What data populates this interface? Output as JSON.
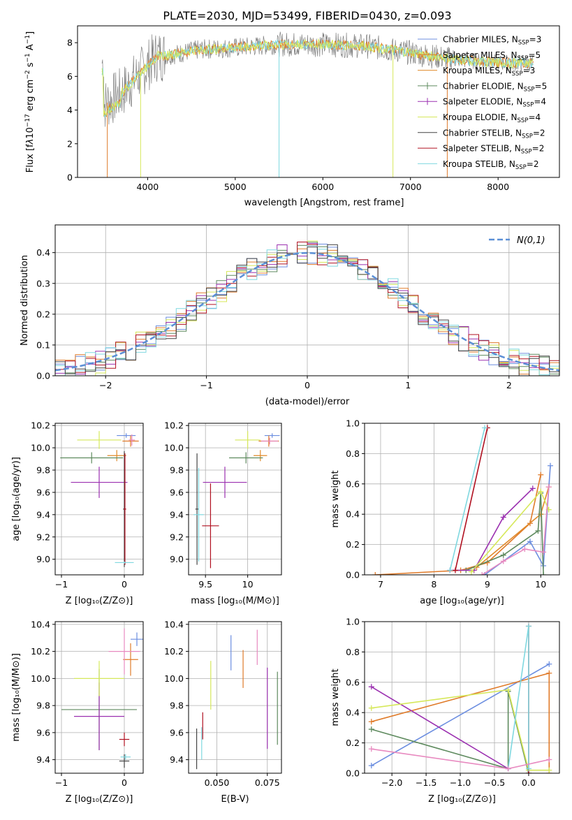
{
  "figure_title": "PLATE=2030, MJD=53499, FIBERID=0430, z=0.093",
  "colors": {
    "Chabrier MILES": "#6c8ee0",
    "Salpeter MILES": "#e07b2a",
    "Kroupa MILES": "#e08a2a",
    "Chabrier ELODIE": "#5e8a5e",
    "Salpeter ELODIE": "#9b30b0",
    "Kroupa ELODIE": "#d6e85a",
    "Chabrier STELIB": "#444444",
    "Salpeter STELIB": "#b01020",
    "Kroupa STELIB": "#7fd8e0",
    "pink": "#e88ac0",
    "grid": "#b0b0b0",
    "normal_line": "#5b8fd6"
  },
  "chart_data": [
    {
      "type": "line",
      "title": "PLATE=2030, MJD=53499, FIBERID=0430, z=0.093",
      "xlabel": "wavelength [Angstrom, rest frame]",
      "ylabel": "Flux [f",
      "xlim": [
        3200,
        8700
      ],
      "ylim": [
        0,
        9
      ],
      "xticks": [
        4000,
        5000,
        6000,
        7000,
        8000
      ],
      "yticks": [
        0,
        2,
        4,
        6,
        8
      ],
      "legend": [
        {
          "name": "Chabrier MILES",
          "nssp": "3"
        },
        {
          "name": "Salpeter MILES",
          "nssp": "5"
        },
        {
          "name": "Kroupa MILES",
          "nssp": "3"
        },
        {
          "name": "Chabrier ELODIE",
          "nssp": "5"
        },
        {
          "name": "Salpeter ELODIE",
          "nssp": "4"
        },
        {
          "name": "Kroupa ELODIE",
          "nssp": "4"
        },
        {
          "name": "Chabrier STELIB",
          "nssp": "2"
        },
        {
          "name": "Salpeter STELIB",
          "nssp": "2"
        },
        {
          "name": "Kroupa STELIB",
          "nssp": "2"
        }
      ],
      "legend_placement": "right",
      "spectrum_continuum": {
        "x": [
          3500,
          3700,
          3900,
          4100,
          4300,
          4600,
          5000,
          5500,
          6000,
          6500,
          7000,
          7500,
          8000,
          8400
        ],
        "y": [
          4.3,
          5.0,
          6.1,
          7.2,
          7.3,
          7.6,
          7.7,
          7.9,
          7.9,
          7.8,
          7.4,
          7.0,
          6.8,
          6.8
        ]
      }
    },
    {
      "type": "line",
      "xlabel": "(data-model)/error",
      "ylabel": "Normed distribution",
      "xlim": [
        -2.5,
        2.5
      ],
      "ylim": [
        0,
        0.49
      ],
      "xticks": [
        -2,
        -1,
        0,
        1,
        2
      ],
      "yticks": [
        0.0,
        0.1,
        0.2,
        0.3,
        0.4
      ],
      "grid": true,
      "legend_label": "N(0,1)",
      "legend_placement": "top-right"
    },
    {
      "type": "scatter",
      "xlabel": "Z [log10(Z/Zsun)]",
      "ylabel": "age [log10(age/yr)]",
      "xlim": [
        -1.1,
        0.3
      ],
      "ylim": [
        8.86,
        10.22
      ],
      "xticks": [
        -1,
        0
      ],
      "yticks": [
        9.0,
        9.2,
        9.4,
        9.6,
        9.8,
        10.0,
        10.2
      ],
      "grid": true,
      "points": [
        {
          "series": "Chabrier MILES",
          "x": 0.03,
          "y": 10.11,
          "xerr": 0.15,
          "yerr": 0.02
        },
        {
          "series": "Salpeter MILES",
          "x": 0.1,
          "y": 10.06,
          "xerr": 0.13,
          "yerr": 0.05
        },
        {
          "series": "Kroupa MILES",
          "x": -0.12,
          "y": 9.93,
          "xerr": 0.15,
          "yerr": 0.05
        },
        {
          "series": "Chabrier ELODIE",
          "x": -0.52,
          "y": 9.91,
          "xerr": 0.5,
          "yerr": 0.05
        },
        {
          "series": "Salpeter ELODIE",
          "x": -0.4,
          "y": 9.69,
          "xerr": 0.45,
          "yerr": 0.14
        },
        {
          "series": "Kroupa ELODIE",
          "x": -0.4,
          "y": 10.07,
          "xerr": 0.35,
          "yerr": 0.08
        },
        {
          "series": "Chabrier STELIB",
          "x": 0.0,
          "y": 9.45,
          "xerr": 0.02,
          "yerr": 0.52
        },
        {
          "series": "Salpeter STELIB",
          "x": 0.01,
          "y": 9.45,
          "xerr": 0.02,
          "yerr": 0.5
        },
        {
          "series": "Kroupa STELIB",
          "x": 0.0,
          "y": 8.97,
          "xerr": 0.15,
          "yerr": 0.01
        },
        {
          "series": "pink",
          "x": 0.12,
          "y": 10.07,
          "xerr": 0.05,
          "yerr": 0.05
        }
      ]
    },
    {
      "type": "scatter",
      "xlabel": "mass [log10(M/Msun)]",
      "xlim": [
        9.3,
        10.4
      ],
      "ylim": [
        8.86,
        10.22
      ],
      "xticks": [
        9.5,
        10.0
      ],
      "yticks": [
        9.0,
        9.2,
        9.4,
        9.6,
        9.8,
        10.0,
        10.2
      ],
      "grid": true,
      "points": [
        {
          "series": "Chabrier MILES",
          "x": 10.29,
          "y": 10.11,
          "xerr": 0.09,
          "yerr": 0.02
        },
        {
          "series": "Salpeter MILES",
          "x": 10.25,
          "y": 10.06,
          "xerr": 0.12,
          "yerr": 0.05
        },
        {
          "series": "Kroupa MILES",
          "x": 10.15,
          "y": 9.93,
          "xerr": 0.08,
          "yerr": 0.05
        },
        {
          "series": "Chabrier ELODIE",
          "x": 9.98,
          "y": 9.91,
          "xerr": 0.2,
          "yerr": 0.05
        },
        {
          "series": "Salpeter ELODIE",
          "x": 9.73,
          "y": 9.69,
          "xerr": 0.26,
          "yerr": 0.14
        },
        {
          "series": "Kroupa ELODIE",
          "x": 10.0,
          "y": 10.07,
          "xerr": 0.15,
          "yerr": 0.08
        },
        {
          "series": "Chabrier STELIB",
          "x": 9.4,
          "y": 9.45,
          "xerr": 0.02,
          "yerr": 0.5
        },
        {
          "series": "Salpeter STELIB",
          "x": 9.56,
          "y": 9.3,
          "xerr": 0.1,
          "yerr": 0.38
        },
        {
          "series": "Kroupa STELIB",
          "x": 9.42,
          "y": 9.4,
          "xerr": 0.06,
          "yerr": 0.42
        },
        {
          "series": "pink",
          "x": 10.26,
          "y": 10.06,
          "xerr": 0.1,
          "yerr": 0.03
        }
      ]
    },
    {
      "type": "line",
      "xlabel": "age [log10(age/yr)]",
      "ylabel": "mass weight",
      "xlim": [
        6.7,
        10.35
      ],
      "ylim": [
        0,
        1.0
      ],
      "xticks": [
        7,
        8,
        9,
        10
      ],
      "yticks": [
        0.0,
        0.2,
        0.4,
        0.6,
        0.8,
        1.0
      ],
      "grid": true,
      "series": [
        {
          "name": "Chabrier MILES",
          "x": [
            8.95,
            9.8,
            10.05,
            10.18
          ],
          "y": [
            0.0,
            0.22,
            0.06,
            0.72
          ]
        },
        {
          "name": "Salpeter MILES",
          "x": [
            6.9,
            8.5,
            9.0,
            9.8,
            10.0
          ],
          "y": [
            0.0,
            0.03,
            0.08,
            0.34,
            0.66
          ]
        },
        {
          "name": "Kroupa MILES",
          "x": [
            8.8,
            10.0,
            10.15
          ],
          "y": [
            0.05,
            0.4,
            0.58
          ]
        },
        {
          "name": "Chabrier ELODIE",
          "x": [
            8.6,
            9.3,
            9.95,
            10.0,
            10.05
          ],
          "y": [
            0.03,
            0.13,
            0.29,
            0.54,
            0.0
          ]
        },
        {
          "name": "Salpeter ELODIE",
          "x": [
            8.3,
            8.75,
            9.3,
            9.85
          ],
          "y": [
            0.03,
            0.03,
            0.38,
            0.57
          ]
        },
        {
          "name": "Kroupa ELODIE",
          "x": [
            8.7,
            10.0,
            10.15
          ],
          "y": [
            0.02,
            0.55,
            0.43
          ]
        },
        {
          "name": "Salpeter STELIB",
          "x": [
            8.4,
            9.0
          ],
          "y": [
            0.03,
            0.97
          ]
        },
        {
          "name": "Kroupa STELIB",
          "x": [
            8.3,
            8.95
          ],
          "y": [
            0.03,
            0.97
          ]
        },
        {
          "name": "pink",
          "x": [
            8.9,
            9.3,
            9.7,
            10.05,
            10.15
          ],
          "y": [
            0.0,
            0.09,
            0.17,
            0.15,
            0.58
          ]
        }
      ]
    },
    {
      "type": "scatter",
      "xlabel": "Z [log10(Z/Zsun)]",
      "ylabel": "mass [log10(M/Msun)]",
      "xlim": [
        -1.1,
        0.3
      ],
      "ylim": [
        9.3,
        10.42
      ],
      "xticks": [
        -1,
        0
      ],
      "yticks": [
        9.4,
        9.6,
        9.8,
        10.0,
        10.2,
        10.4
      ],
      "grid": true,
      "points": [
        {
          "series": "Chabrier MILES",
          "x": 0.2,
          "y": 10.29,
          "xerr": 0.1,
          "yerr": 0.05
        },
        {
          "series": "Salpeter MILES",
          "x": 0.1,
          "y": 10.14,
          "xerr": 0.12,
          "yerr": 0.12
        },
        {
          "series": "Chabrier ELODIE",
          "x": -0.4,
          "y": 9.77,
          "xerr": 0.6,
          "yerr": 0.3
        },
        {
          "series": "Salpeter ELODIE",
          "x": -0.4,
          "y": 9.72,
          "xerr": 0.4,
          "yerr": 0.25
        },
        {
          "series": "Kroupa ELODIE",
          "x": -0.4,
          "y": 10.0,
          "xerr": 0.4,
          "yerr": 0.13
        },
        {
          "series": "Chabrier STELIB",
          "x": 0.0,
          "y": 9.39,
          "xerr": 0.08,
          "yerr": 0.05
        },
        {
          "series": "Salpeter STELIB",
          "x": 0.0,
          "y": 9.55,
          "xerr": 0.08,
          "yerr": 0.05
        },
        {
          "series": "Kroupa STELIB",
          "x": 0.02,
          "y": 9.42,
          "xerr": 0.08,
          "yerr": 0.02
        },
        {
          "series": "pink",
          "x": 0.0,
          "y": 10.2,
          "xerr": 0.25,
          "yerr": 0.17
        }
      ]
    },
    {
      "type": "scatter",
      "xlabel": "E(B-V)",
      "xlim": [
        0.036,
        0.082
      ],
      "ylim": [
        9.3,
        10.42
      ],
      "xticks": [
        0.05,
        0.075
      ],
      "xticklabels": [
        "0.050",
        "0.075"
      ],
      "yticks": [
        9.4,
        9.6,
        9.8,
        10.0,
        10.2,
        10.4
      ],
      "grid": true,
      "points": [
        {
          "series": "Chabrier STELIB",
          "x": 0.04,
          "y": 9.48,
          "yerr": 0.15
        },
        {
          "series": "Salpeter STELIB",
          "x": 0.043,
          "y": 9.65,
          "yerr": 0.1
        },
        {
          "series": "Kroupa STELIB",
          "x": 0.0425,
          "y": 9.52,
          "yerr": 0.12
        },
        {
          "series": "Kroupa ELODIE",
          "x": 0.047,
          "y": 9.95,
          "yerr": 0.18
        },
        {
          "series": "Chabrier MILES",
          "x": 0.057,
          "y": 10.19,
          "yerr": 0.13
        },
        {
          "series": "Salpeter MILES",
          "x": 0.063,
          "y": 10.07,
          "yerr": 0.14
        },
        {
          "series": "pink",
          "x": 0.07,
          "y": 10.23,
          "yerr": 0.13
        },
        {
          "series": "Salpeter ELODIE",
          "x": 0.075,
          "y": 9.78,
          "yerr": 0.3
        },
        {
          "series": "Chabrier ELODIE",
          "x": 0.08,
          "y": 9.78,
          "yerr": 0.27
        }
      ]
    },
    {
      "type": "line",
      "xlabel": "Z [log10(Z/Zsun)]",
      "ylabel": "mass weight",
      "xlim": [
        -2.4,
        0.45
      ],
      "ylim": [
        0,
        1.0
      ],
      "xticks": [
        -2.0,
        -1.5,
        -1.0,
        -0.5,
        0.0
      ],
      "xticklabels": [
        "−2.0",
        "−1.5",
        "−1.0",
        "−0.5",
        "0.0"
      ],
      "yticks": [
        0.0,
        0.2,
        0.4,
        0.6,
        0.8,
        1.0
      ],
      "grid": true,
      "series": [
        {
          "name": "Chabrier MILES",
          "x": [
            -2.3,
            0.3
          ],
          "y": [
            0.05,
            0.72
          ]
        },
        {
          "name": "Salpeter MILES",
          "x": [
            -2.3,
            0.3,
            0.3
          ],
          "y": [
            0.34,
            0.66,
            0.0
          ]
        },
        {
          "name": "Chabrier ELODIE",
          "x": [
            -2.3,
            -0.3,
            -0.3,
            0.0
          ],
          "y": [
            0.29,
            0.03,
            0.54,
            0.0
          ]
        },
        {
          "name": "Salpeter ELODIE",
          "x": [
            -2.3,
            -0.3
          ],
          "y": [
            0.57,
            0.03
          ]
        },
        {
          "name": "Kroupa ELODIE",
          "x": [
            -2.3,
            -0.3,
            0.0,
            0.3
          ],
          "y": [
            0.43,
            0.55,
            0.02,
            0.02
          ]
        },
        {
          "name": "Salpeter STELIB",
          "x": [
            0.0,
            0.0
          ],
          "y": [
            0.0,
            0.97
          ]
        },
        {
          "name": "Kroupa STELIB",
          "x": [
            -0.3,
            0.0,
            0.0
          ],
          "y": [
            0.03,
            0.97,
            0.03
          ]
        },
        {
          "name": "pink",
          "x": [
            -2.3,
            -0.3,
            0.3
          ],
          "y": [
            0.16,
            0.03,
            0.09
          ]
        }
      ]
    }
  ]
}
